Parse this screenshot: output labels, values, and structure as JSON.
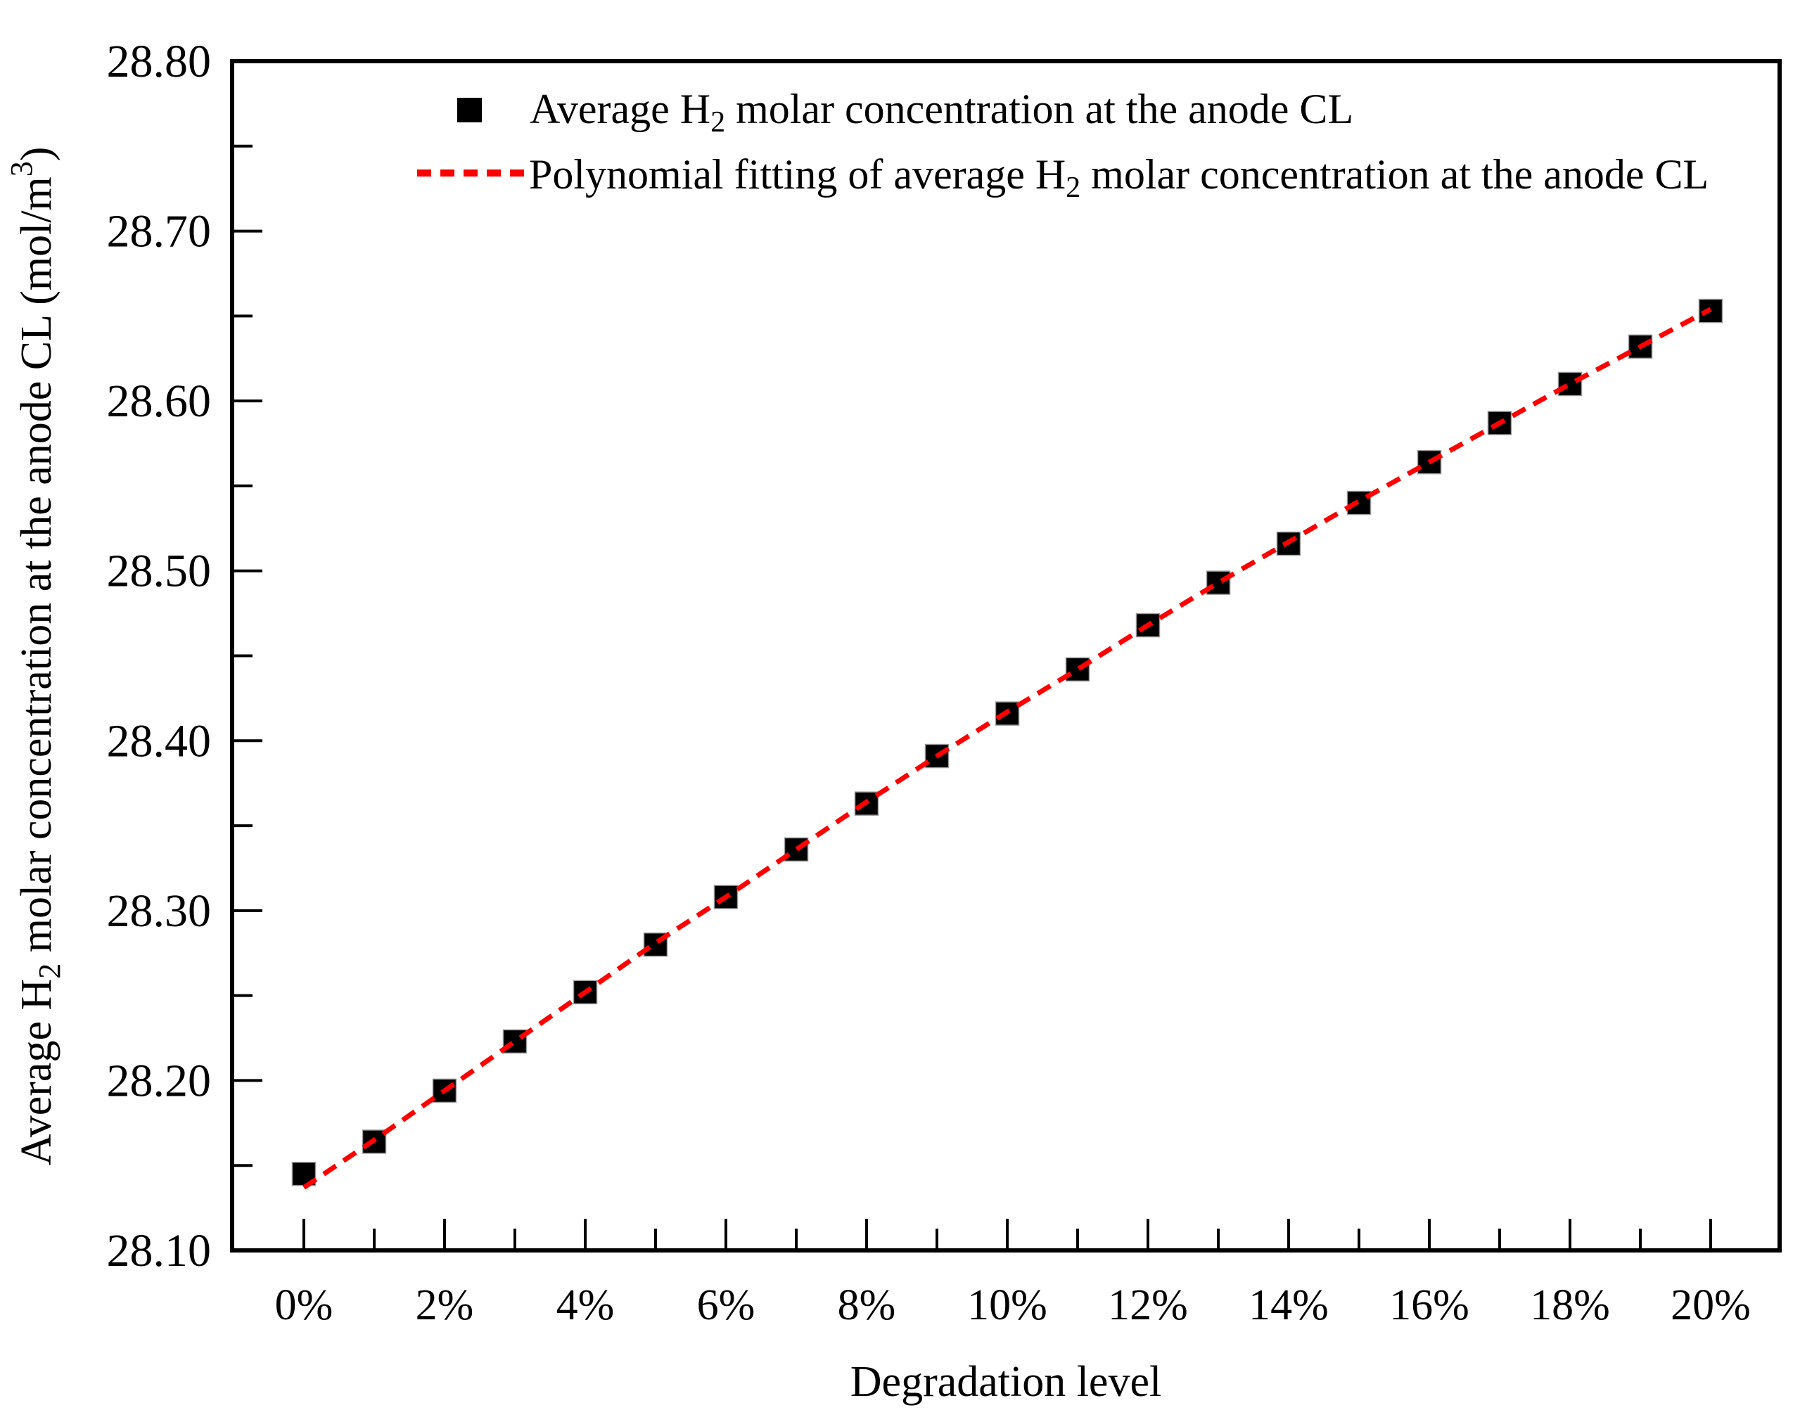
{
  "figure": {
    "x_title": "Degradation level",
    "y_title": {
      "pre": "Average H",
      "sub": "2",
      "mid": " molar concentration at the anode CL (mol/m",
      "sup": "3",
      "post": ")"
    },
    "legend": [
      {
        "pre": "Average H",
        "sub": "2",
        "post": " molar concentration at the anode CL",
        "marker": "black-square",
        "color": "#000000"
      },
      {
        "pre": "Polynomial fitting of average H",
        "sub": "2",
        "post": " molar concentration at the anode CL",
        "marker": "red-dashed-line",
        "color": "#ff0000"
      }
    ]
  },
  "chart_data": {
    "type": "scatter",
    "title": "",
    "xlabel": "Degradation level",
    "ylabel": "Average H2 molar concentration at the anode CL (mol/m3)",
    "categories": [
      "0%",
      "1%",
      "2%",
      "3%",
      "4%",
      "5%",
      "6%",
      "7%",
      "8%",
      "9%",
      "10%",
      "11%",
      "12%",
      "13%",
      "14%",
      "15%",
      "16%",
      "17%",
      "18%",
      "19%",
      "20%"
    ],
    "x": [
      0,
      1,
      2,
      3,
      4,
      5,
      6,
      7,
      8,
      9,
      10,
      11,
      12,
      13,
      14,
      15,
      16,
      17,
      18,
      19,
      20
    ],
    "series": [
      {
        "name": "Average H2 molar concentration at the anode CL",
        "type": "scatter",
        "marker": "square",
        "color": "#000000",
        "values": [
          28.145,
          28.164,
          28.194,
          28.223,
          28.252,
          28.28,
          28.308,
          28.336,
          28.363,
          28.391,
          28.416,
          28.442,
          28.468,
          28.493,
          28.516,
          28.54,
          28.564,
          28.587,
          28.61,
          28.632,
          28.653
        ]
      },
      {
        "name": "Polynomial fitting of average H2 molar concentration at the anode CL",
        "type": "line",
        "style": "dashed",
        "color": "#ff0000",
        "values": [
          28.137,
          28.165,
          28.194,
          28.223,
          28.252,
          28.281,
          28.308,
          28.336,
          28.364,
          28.391,
          28.417,
          28.442,
          28.468,
          28.493,
          28.517,
          28.541,
          28.564,
          28.587,
          28.61,
          28.632,
          28.654
        ]
      }
    ],
    "xlim": [
      -1.02,
      20.98
    ],
    "ylim": [
      28.1,
      28.8
    ],
    "x_major_ticks": [
      0,
      2,
      4,
      6,
      8,
      10,
      12,
      14,
      16,
      18,
      20
    ],
    "x_major_tick_labels": [
      "0%",
      "2%",
      "4%",
      "6%",
      "8%",
      "10%",
      "12%",
      "14%",
      "16%",
      "18%",
      "20%"
    ],
    "x_minor_ticks": [
      1,
      3,
      5,
      7,
      9,
      11,
      13,
      15,
      17,
      19
    ],
    "y_major_ticks": [
      28.1,
      28.2,
      28.3,
      28.4,
      28.5,
      28.6,
      28.7,
      28.8
    ],
    "y_major_tick_labels": [
      "28.10",
      "28.20",
      "28.30",
      "28.40",
      "28.50",
      "28.60",
      "28.70",
      "28.80"
    ],
    "y_minor_ticks": [
      28.15,
      28.25,
      28.35,
      28.45,
      28.55,
      28.65,
      28.75
    ],
    "grid": false,
    "tick_direction": "in",
    "legend_position": "top-inside"
  }
}
